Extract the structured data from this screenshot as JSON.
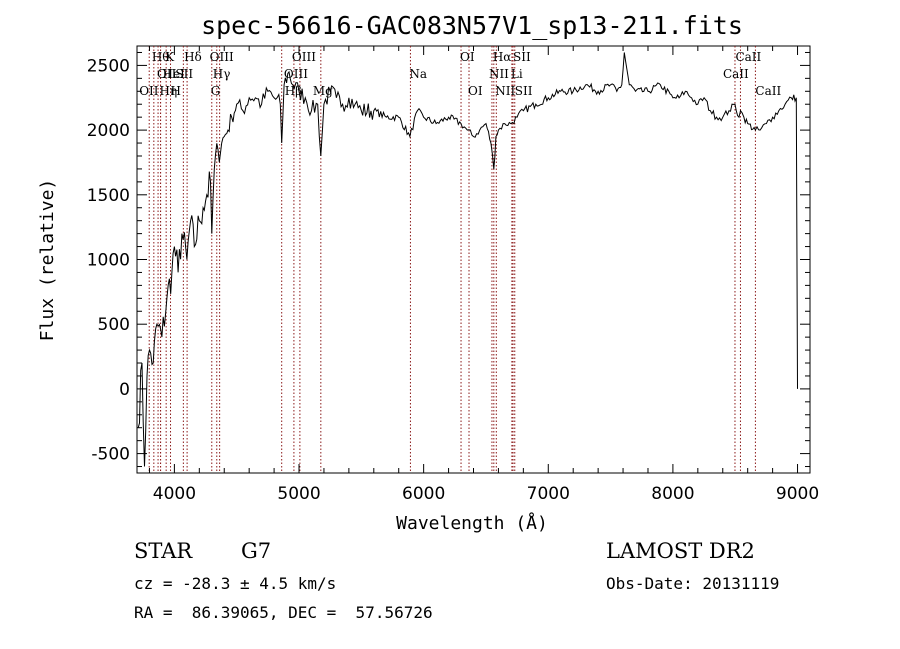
{
  "chart_data": {
    "type": "line",
    "title": "spec-56616-GAC083N57V1_sp13-211.fits",
    "xlabel": "Wavelength (Å)",
    "ylabel": "Flux (relative)",
    "xlim": [
      3700,
      9100
    ],
    "ylim": [
      -650,
      2650
    ],
    "xticks": [
      4000,
      5000,
      6000,
      7000,
      8000,
      9000
    ],
    "yticks": [
      -500,
      0,
      500,
      1000,
      1500,
      2000,
      2500
    ],
    "grid": false,
    "series": [
      {
        "color": "#000000",
        "x": [
          3710,
          3740,
          3760,
          3780,
          3800,
          3830,
          3860,
          3900,
          3940,
          3980,
          4000,
          4030,
          4060,
          4100,
          4130,
          4160,
          4200,
          4230,
          4260,
          4290,
          4300,
          4320,
          4350,
          4380,
          4400,
          4430,
          4460,
          4500,
          4550,
          4600,
          4650,
          4700,
          4750,
          4800,
          4850,
          4861,
          4880,
          4920,
          4950,
          5000,
          5050,
          5100,
          5150,
          5175,
          5200,
          5250,
          5300,
          5350,
          5400,
          5450,
          5500,
          5600,
          5700,
          5800,
          5890,
          5950,
          6000,
          6100,
          6200,
          6300,
          6350,
          6400,
          6450,
          6500,
          6540,
          6563,
          6580,
          6600,
          6650,
          6700,
          6750,
          6800,
          6900,
          7000,
          7100,
          7200,
          7300,
          7400,
          7500,
          7550,
          7590,
          7610,
          7650,
          7700,
          7800,
          7900,
          8000,
          8050,
          8100,
          8150,
          8200,
          8250,
          8300,
          8350,
          8400,
          8450,
          8498,
          8530,
          8542,
          8570,
          8600,
          8662,
          8700,
          8750,
          8800,
          8850,
          8900,
          8950,
          8990,
          9000
        ],
        "y": [
          -300,
          200,
          -600,
          100,
          300,
          200,
          500,
          400,
          700,
          900,
          1100,
          900,
          1200,
          1000,
          1300,
          1100,
          1300,
          1400,
          1500,
          1600,
          1200,
          1700,
          1850,
          1900,
          1950,
          2000,
          2100,
          2200,
          2150,
          2250,
          2250,
          2200,
          2300,
          2250,
          2200,
          1900,
          2350,
          2450,
          2350,
          2300,
          2250,
          2150,
          2200,
          1800,
          2200,
          2300,
          2250,
          2200,
          2250,
          2200,
          2150,
          2150,
          2100,
          2100,
          1950,
          2150,
          2100,
          2050,
          2100,
          2050,
          2000,
          1950,
          2000,
          2050,
          1900,
          1700,
          1950,
          2000,
          2050,
          2050,
          2100,
          2150,
          2200,
          2250,
          2300,
          2300,
          2350,
          2300,
          2350,
          2300,
          2350,
          2600,
          2350,
          2300,
          2300,
          2350,
          2250,
          2250,
          2300,
          2250,
          2200,
          2250,
          2150,
          2100,
          2100,
          2150,
          2200,
          2100,
          2150,
          2100,
          2050,
          2000,
          2000,
          2050,
          2100,
          2150,
          2200,
          2250,
          2250,
          0
        ]
      }
    ],
    "line_marks": [
      {
        "wave": 3798,
        "row": 3,
        "text": "OII",
        "dx": -10
      },
      {
        "wave": 3835,
        "row": 1,
        "text": "Hθ",
        "dx": -2
      },
      {
        "wave": 3869,
        "row": 2,
        "text": "OII",
        "dx": -1
      },
      {
        "wave": 3889,
        "row": 2,
        "text": "HeI",
        "dx": 2
      },
      {
        "wave": 3889,
        "row": 3,
        "text": "Hη",
        "dx": -1
      },
      {
        "wave": 3934,
        "row": 1,
        "text": "K",
        "dx": -1
      },
      {
        "wave": 3969,
        "row": 3,
        "text": "H",
        "dx": 0
      },
      {
        "wave": 4072,
        "row": 2,
        "text": "SII",
        "dx": -8
      },
      {
        "wave": 4102,
        "row": 1,
        "text": "Hδ",
        "dx": -3
      },
      {
        "wave": 4300,
        "row": 3,
        "text": "G",
        "dx": -1
      },
      {
        "wave": 4340,
        "row": 2,
        "text": "Hγ",
        "dx": -4
      },
      {
        "wave": 4363,
        "row": 1,
        "text": "OIII",
        "dx": -10
      },
      {
        "wave": 4861,
        "row": 3,
        "text": "Hβ",
        "dx": 3
      },
      {
        "wave": 4959,
        "row": 2,
        "text": "OIII",
        "dx": -10
      },
      {
        "wave": 5007,
        "row": 1,
        "text": "OIII",
        "dx": -8
      },
      {
        "wave": 5175,
        "row": 3,
        "text": "Mg",
        "dx": -8
      },
      {
        "wave": 5894,
        "row": 2,
        "text": "Na",
        "dx": -1
      },
      {
        "wave": 6300,
        "row": 1,
        "text": "OI",
        "dx": -1
      },
      {
        "wave": 6364,
        "row": 3,
        "text": "OI",
        "dx": -1
      },
      {
        "wave": 6548,
        "row": 2,
        "text": "NII",
        "dx": -3
      },
      {
        "wave": 6563,
        "row": 1,
        "text": "Hα",
        "dx": -1
      },
      {
        "wave": 6583,
        "row": 3,
        "text": "NII",
        "dx": -1
      },
      {
        "wave": 6708,
        "row": 2,
        "text": "Li",
        "dx": -1
      },
      {
        "wave": 6717,
        "row": 1,
        "text": "SII",
        "dx": 0
      },
      {
        "wave": 6731,
        "row": 3,
        "text": "SII",
        "dx": 0
      },
      {
        "wave": 8498,
        "row": 2,
        "text": "CaII",
        "dx": -12
      },
      {
        "wave": 8542,
        "row": 1,
        "text": "CaII",
        "dx": -5
      },
      {
        "wave": 8662,
        "row": 3,
        "text": "CaII",
        "dx": 0
      }
    ]
  },
  "footer": {
    "object_class": "STAR",
    "subclass": "G7",
    "redshift": "cz = -28.3 ± 4.5 km/s",
    "coords": "RA =  86.39065, DEC =  57.56726",
    "survey": "LAMOST DR2",
    "obs_date": "Obs-Date: 20131119"
  },
  "colors": {
    "spectrum": "#000000",
    "line_marker": "#8b1a1a"
  }
}
